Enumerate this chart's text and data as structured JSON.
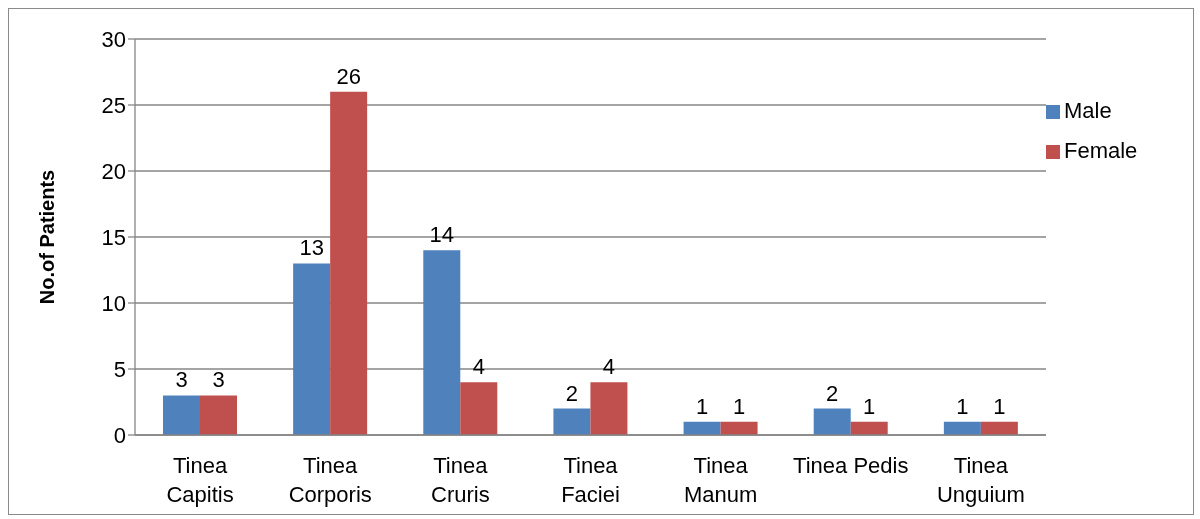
{
  "chart_data": {
    "type": "bar",
    "ylabel": "No.of Patients",
    "categories": [
      "Tinea Capitis",
      "Tinea Corporis",
      "Tinea Cruris",
      "Tinea Faciei",
      "Tinea Manum",
      "Tinea Pedis",
      "Tinea Unguium"
    ],
    "series": [
      {
        "name": "Male",
        "color": "#4f81bd",
        "values": [
          3,
          13,
          14,
          2,
          1,
          2,
          1
        ]
      },
      {
        "name": "Female",
        "color": "#c0504d",
        "values": [
          3,
          26,
          4,
          4,
          1,
          1,
          1
        ]
      }
    ],
    "ylim": [
      0,
      30
    ],
    "yticks": [
      0,
      5,
      10,
      15,
      20,
      25,
      30
    ],
    "grid": "y",
    "legend": "right",
    "data_labels": true
  }
}
